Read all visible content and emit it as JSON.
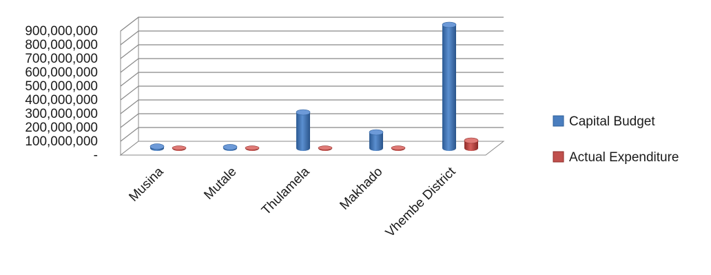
{
  "chart_data": {
    "type": "bar",
    "categories": [
      "Musina",
      "Mutale",
      "Thulamela",
      "Makhado",
      "Vhembe District"
    ],
    "series": [
      {
        "name": "Capital Budget",
        "values": [
          12000000,
          8000000,
          260000000,
          115000000,
          895000000
        ]
      },
      {
        "name": "Actual Expenditure",
        "values": [
          2000000,
          2000000,
          2000000,
          2000000,
          55000000
        ]
      }
    ],
    "y_ticks": [
      "-",
      "100,000,000",
      "200,000,000",
      "300,000,000",
      "400,000,000",
      "500,000,000",
      "600,000,000",
      "700,000,000",
      "800,000,000",
      "900,000,000"
    ],
    "ylim": [
      0,
      900000000
    ],
    "grid": true,
    "legend_position": "right",
    "title": "",
    "xlabel": "",
    "ylabel": ""
  },
  "colors": {
    "series_colors": [
      "#4a7ebf",
      "#c0504d"
    ],
    "grid": "#888888"
  }
}
